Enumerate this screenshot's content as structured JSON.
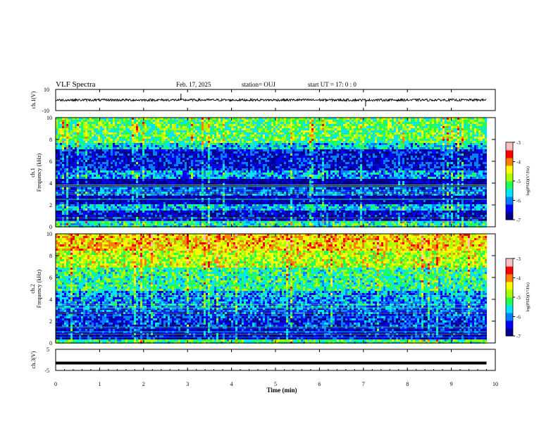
{
  "header": {
    "title": "VLF Spectra",
    "date": "Feb. 17, 2025",
    "station": "station= OUJ",
    "start": "start  UT  =   17: 0  : 0"
  },
  "colorbar": {
    "label": "log(PSD)(V²/Hz)",
    "ticks": [
      "-3",
      "-4",
      "-5",
      "-6",
      "-7"
    ],
    "colors": [
      "#00008b",
      "#0000ff",
      "#0080ff",
      "#00e5ff",
      "#22ff55",
      "#aaff00",
      "#ffff00",
      "#ff8000",
      "#ff0000",
      "#ffc0c0"
    ]
  },
  "chart_data": [
    {
      "type": "line",
      "ylabel": "ch.1(V)",
      "ylim": [
        -10,
        10
      ],
      "yticks": [
        "10",
        "-10"
      ],
      "description_values": {
        "x_min": [
          0,
          1,
          2,
          2.85,
          3,
          4,
          5,
          6,
          7.05,
          8,
          9,
          9.8
        ],
        "y_approx": [
          0,
          0,
          0,
          3,
          0,
          0,
          0,
          0,
          -3,
          0,
          0,
          0
        ]
      }
    },
    {
      "type": "heatmap",
      "ylabel": "ch.1",
      "ylabel2": "Frequency (kHz)",
      "xlim": [
        0,
        10
      ],
      "ylim": [
        0,
        10
      ],
      "yticks": [
        "10",
        "8",
        "6",
        "4",
        "2",
        "0"
      ],
      "zlim": [
        -7,
        -3
      ],
      "x_extent_min": 9.8,
      "bands": [
        {
          "f_from": 0,
          "f_to": 0.6,
          "value": -5.4
        },
        {
          "f_from": 0.6,
          "f_to": 1.6,
          "value": -6.6
        },
        {
          "f_from": 1.6,
          "f_to": 2.2,
          "value": -5.8
        },
        {
          "f_from": 2.2,
          "f_to": 3.0,
          "value": -6.8
        },
        {
          "f_from": 3.0,
          "f_to": 3.7,
          "value": -6.2
        },
        {
          "f_from": 3.7,
          "f_to": 4.5,
          "value": -6.9
        },
        {
          "f_from": 4.5,
          "f_to": 5.3,
          "value": -5.9
        },
        {
          "f_from": 5.3,
          "f_to": 7.2,
          "value": -6.5
        },
        {
          "f_from": 7.2,
          "f_to": 7.8,
          "value": -5.7
        },
        {
          "f_from": 7.8,
          "f_to": 10,
          "value": -5.1
        }
      ]
    },
    {
      "type": "heatmap",
      "ylabel": "ch.2",
      "ylabel2": "Frequency (kHz)",
      "xlim": [
        0,
        10
      ],
      "ylim": [
        0,
        10
      ],
      "yticks": [
        "10",
        "8",
        "6",
        "4",
        "2",
        "0"
      ],
      "zlim": [
        -7,
        -3
      ],
      "x_extent_min": 9.8,
      "bands": [
        {
          "f_from": 0,
          "f_to": 0.4,
          "value": -5.2
        },
        {
          "f_from": 0.4,
          "f_to": 1.6,
          "value": -6.6
        },
        {
          "f_from": 1.6,
          "f_to": 3.4,
          "value": -6.3
        },
        {
          "f_from": 3.4,
          "f_to": 4.8,
          "value": -5.9
        },
        {
          "f_from": 4.8,
          "f_to": 7.0,
          "value": -5.3
        },
        {
          "f_from": 7.0,
          "f_to": 8.5,
          "value": -4.7
        },
        {
          "f_from": 8.5,
          "f_to": 10,
          "value": -4.3
        }
      ]
    },
    {
      "type": "line",
      "ylabel": "ch.3(V)",
      "ylim": [
        -5,
        5
      ],
      "yticks": [
        "5",
        "-5"
      ],
      "x": [
        0,
        9.8
      ],
      "y": [
        -1.5,
        -1.5
      ]
    }
  ],
  "xaxis": {
    "label": "Time (min)",
    "ticks": [
      "0",
      "1",
      "2",
      "3",
      "4",
      "5",
      "6",
      "7",
      "8",
      "9",
      "10"
    ]
  }
}
